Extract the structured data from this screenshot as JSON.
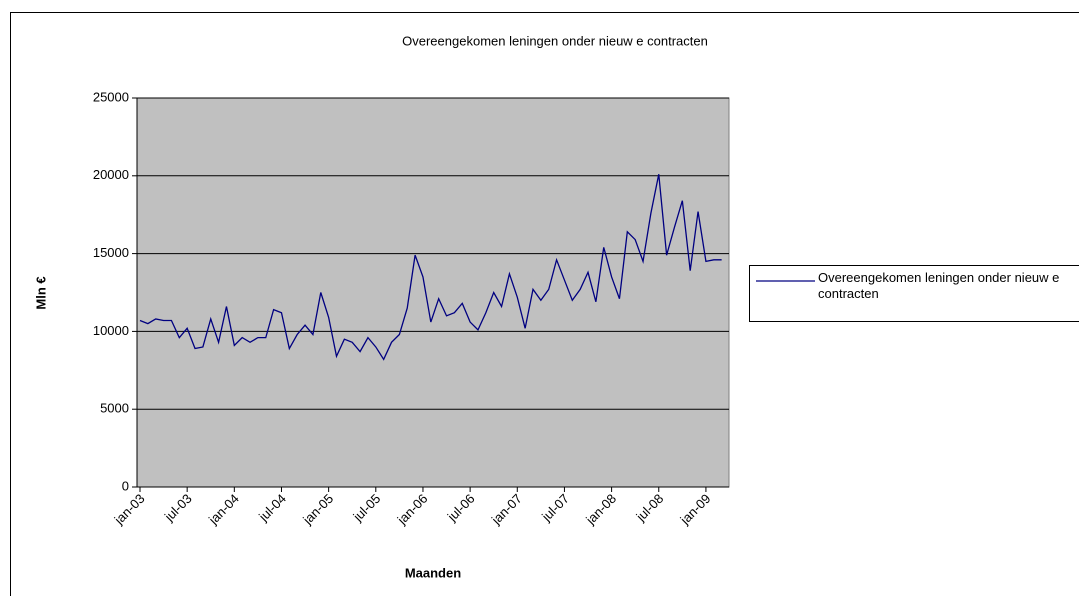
{
  "chart_data": {
    "type": "line",
    "title": "Overeengekomen leningen onder nieuw e contracten",
    "x_label": "Maanden",
    "y_label": "Mln €",
    "categories": [
      "jan-03",
      null,
      null,
      null,
      null,
      null,
      "jul-03",
      null,
      null,
      null,
      null,
      null,
      "jan-04",
      null,
      null,
      null,
      null,
      null,
      "jul-04",
      null,
      null,
      null,
      null,
      null,
      "jan-05",
      null,
      null,
      null,
      null,
      null,
      "jul-05",
      null,
      null,
      null,
      null,
      null,
      "jan-06",
      null,
      null,
      null,
      null,
      null,
      "jul-06",
      null,
      null,
      null,
      null,
      null,
      "jan-07",
      null,
      null,
      null,
      null,
      null,
      "jul-07",
      null,
      null,
      null,
      null,
      null,
      "jan-08",
      null,
      null,
      null,
      null,
      null,
      "jul-08",
      null,
      null,
      null,
      null,
      null,
      "jan-09",
      null,
      null
    ],
    "series": [
      {
        "name": "Overeengekomen leningen onder nieuw e contracten",
        "color": "#000080",
        "values": [
          10700,
          10500,
          10800,
          10700,
          10700,
          9600,
          10200,
          8900,
          9000,
          10800,
          9300,
          11600,
          9100,
          9600,
          9300,
          9600,
          9600,
          11400,
          11200,
          8900,
          9800,
          10400,
          9800,
          12500,
          10900,
          8400,
          9500,
          9300,
          8700,
          9600,
          9000,
          8200,
          9300,
          9800,
          11500,
          14900,
          13500,
          10600,
          12100,
          11000,
          11200,
          11800,
          10600,
          10100,
          11200,
          12500,
          11600,
          13700,
          12200,
          10200,
          12700,
          12000,
          12700,
          14600,
          13300,
          12000,
          12700,
          13800,
          11900,
          15400,
          13500,
          12100,
          16400,
          15900,
          14500,
          17600,
          20100,
          14900,
          16700,
          18400,
          13900,
          17700,
          14500,
          14600,
          14600
        ]
      }
    ],
    "ylim": [
      0,
      25000
    ],
    "yticks": [
      0,
      5000,
      10000,
      15000,
      20000,
      25000
    ],
    "grid": true,
    "legend": "right"
  }
}
